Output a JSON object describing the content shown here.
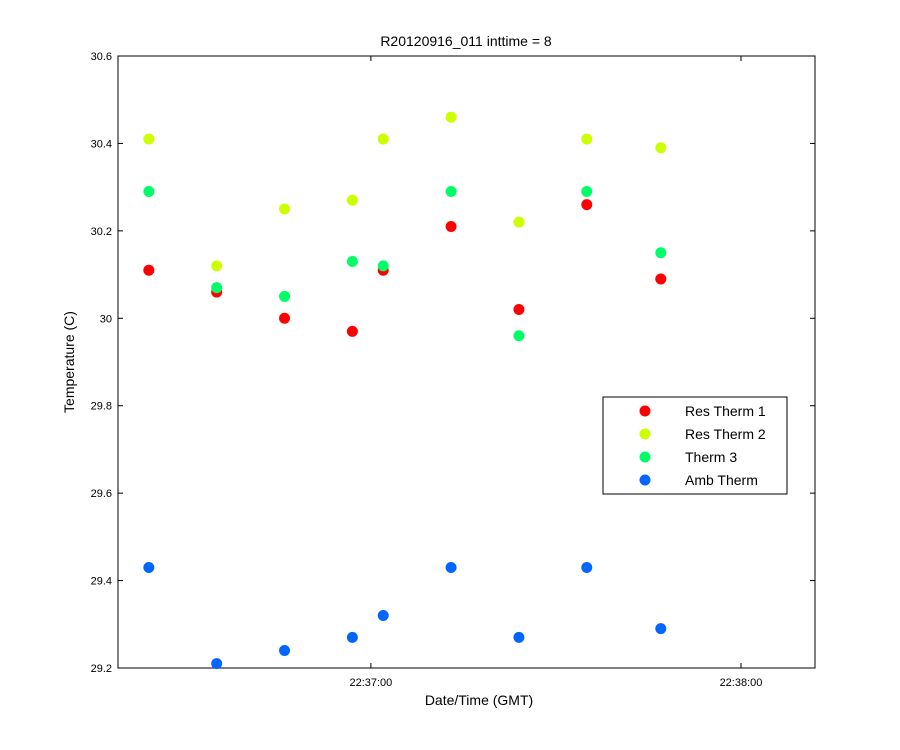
{
  "chart_data": {
    "type": "scatter",
    "title": "R20120916_011 inttime = 8",
    "xlabel": "Date/Time (GMT)",
    "ylabel": "Temperature (C)",
    "x_time_range": [
      "22:36:19",
      "22:38:12"
    ],
    "ylim": [
      29.2,
      30.6
    ],
    "y_ticks": [
      29.2,
      29.4,
      29.6,
      29.8,
      30,
      30.2,
      30.4,
      30.6
    ],
    "y_tick_labels": [
      "29.2",
      "29.4",
      "29.6",
      "29.8",
      "30",
      "30.2",
      "30.4",
      "30.6"
    ],
    "x_ticks": [
      "22:37:00",
      "22:38:00"
    ],
    "x_tick_labels": [
      "22:37:00",
      "22:38:00"
    ],
    "x": [
      "22:36:24",
      "22:36:35",
      "22:36:46",
      "22:36:57",
      "22:37:02",
      "22:37:13",
      "22:37:24",
      "22:37:35",
      "22:37:47"
    ],
    "grid": false,
    "legend_position": "right",
    "series": [
      {
        "name": "Res Therm 1",
        "color": "#ff0000",
        "values": [
          30.11,
          30.06,
          30.0,
          29.97,
          30.11,
          30.21,
          30.02,
          30.26,
          30.09
        ]
      },
      {
        "name": "Res Therm 2",
        "color": "#ccff00",
        "values": [
          30.41,
          30.12,
          30.25,
          30.27,
          30.41,
          30.46,
          30.22,
          30.41,
          30.39
        ]
      },
      {
        "name": "Therm 3",
        "color": "#00ff66",
        "values": [
          30.29,
          30.07,
          30.05,
          30.13,
          30.12,
          30.29,
          29.96,
          30.29,
          30.15
        ]
      },
      {
        "name": "Amb Therm",
        "color": "#0066ff",
        "values": [
          29.43,
          29.21,
          29.24,
          29.27,
          29.32,
          29.43,
          29.27,
          29.43,
          29.29
        ]
      }
    ]
  }
}
